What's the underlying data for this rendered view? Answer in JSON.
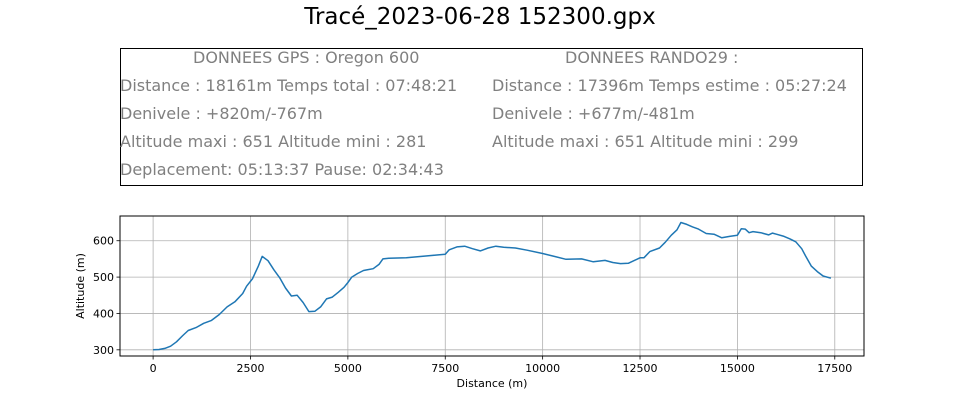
{
  "title": "Tracé_2023-06-28 152300.gpx",
  "info": {
    "left": {
      "header": "DONNEES GPS :  Oregon 600",
      "lines": [
        "Distance : 18161m\tTemps total : 07:48:21",
        "Denivele : +820m/-767m",
        "Altitude maxi : 651\tAltitude mini : 281",
        "Deplacement: 05:13:37\tPause: 02:34:43"
      ]
    },
    "right": {
      "header": "DONNEES RANDO29  :",
      "lines": [
        "Distance : 17396m\tTemps estime : 05:27:24",
        "Denivele : +677m/-481m",
        "Altitude maxi : 651\tAltitude mini : 299"
      ]
    }
  },
  "chart_data": {
    "type": "line",
    "xlabel": "Distance (m)",
    "ylabel": "Altitude (m)",
    "xlim": [
      -850,
      18250
    ],
    "ylim": [
      283,
      668
    ],
    "xticks": [
      0,
      2500,
      5000,
      7500,
      10000,
      12500,
      15000,
      17500
    ],
    "yticks": [
      300,
      400,
      500,
      600
    ],
    "grid": true,
    "line_color": "#1f77b4",
    "series": [
      {
        "x": [
          0,
          150,
          300,
          450,
          600,
          750,
          900,
          1100,
          1300,
          1500,
          1700,
          1900,
          2100,
          2300,
          2400,
          2550,
          2700,
          2800,
          2950,
          3100,
          3250,
          3400,
          3550,
          3700,
          3850,
          4000,
          4150,
          4300,
          4450,
          4600,
          4750,
          4900,
          5000,
          5100,
          5250,
          5400,
          5500,
          5650,
          5800,
          5900,
          6050,
          6500,
          7000,
          7500,
          7600,
          7800,
          8000,
          8200,
          8400,
          8600,
          8800,
          9000,
          9300,
          9600,
          10000,
          10300,
          10600,
          11000,
          11300,
          11600,
          11800,
          12000,
          12200,
          12500,
          12600,
          12750,
          13000,
          13150,
          13300,
          13450,
          13550,
          13700,
          13850,
          14000,
          14200,
          14400,
          14600,
          14800,
          15000,
          15100,
          15200,
          15300,
          15400,
          15600,
          15800,
          15900,
          16000,
          16200,
          16350,
          16500,
          16650,
          16750,
          16900,
          17050,
          17200,
          17400
        ],
        "y": [
          300,
          301,
          304,
          310,
          322,
          338,
          353,
          361,
          373,
          381,
          397,
          418,
          432,
          455,
          475,
          495,
          530,
          557,
          545,
          520,
          498,
          470,
          448,
          450,
          430,
          405,
          406,
          418,
          440,
          445,
          458,
          472,
          485,
          500,
          510,
          518,
          520,
          523,
          535,
          550,
          552,
          553,
          558,
          563,
          575,
          583,
          585,
          578,
          572,
          580,
          585,
          582,
          580,
          574,
          565,
          557,
          549,
          550,
          542,
          546,
          540,
          537,
          538,
          553,
          553,
          570,
          580,
          596,
          615,
          630,
          650,
          645,
          638,
          632,
          620,
          618,
          608,
          612,
          615,
          633,
          632,
          622,
          625,
          622,
          616,
          621,
          618,
          612,
          605,
          597,
          578,
          558,
          530,
          515,
          503,
          497
        ]
      }
    ]
  }
}
